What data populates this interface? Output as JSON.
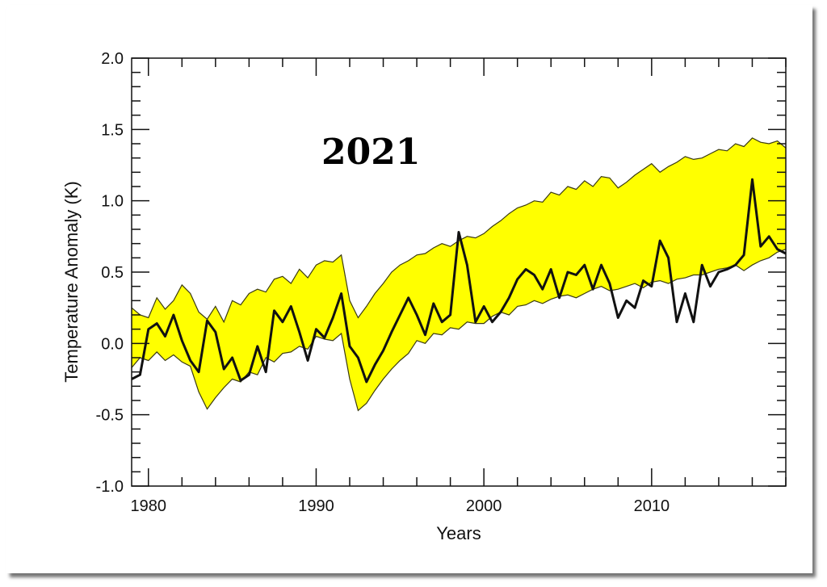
{
  "chart_data": {
    "type": "area",
    "title": "",
    "annotation": "2021",
    "xlabel": "Years",
    "ylabel": "Temperature Anomaly (K)",
    "xlim": [
      1979,
      2018
    ],
    "ylim": [
      -1.0,
      2.0
    ],
    "x_ticks": [
      1980,
      1990,
      2000,
      2010
    ],
    "y_ticks": [
      "-1.0",
      "-0.5",
      "0.0",
      "0.5",
      "1.0",
      "1.5",
      "2.0"
    ],
    "grid": false,
    "legend": "none",
    "colors": {
      "band_fill": "#ffff00",
      "band_edge": "#3a3a10",
      "observed_line": "#111111"
    },
    "series": [
      {
        "role": "band-upper",
        "x": [
          1979.0,
          1979.5,
          1980.0,
          1980.5,
          1981.0,
          1981.5,
          1982.0,
          1982.5,
          1983.0,
          1983.5,
          1984.0,
          1984.5,
          1985.0,
          1985.5,
          1986.0,
          1986.5,
          1987.0,
          1987.5,
          1988.0,
          1988.5,
          1989.0,
          1989.5,
          1990.0,
          1990.5,
          1991.0,
          1991.5,
          1992.0,
          1992.5,
          1993.0,
          1993.5,
          1994.0,
          1994.5,
          1995.0,
          1995.5,
          1996.0,
          1996.5,
          1997.0,
          1997.5,
          1998.0,
          1998.5,
          1999.0,
          1999.5,
          2000.0,
          2000.5,
          2001.0,
          2001.5,
          2002.0,
          2002.5,
          2003.0,
          2003.5,
          2004.0,
          2004.5,
          2005.0,
          2005.5,
          2006.0,
          2006.5,
          2007.0,
          2007.5,
          2008.0,
          2008.5,
          2009.0,
          2009.5,
          2010.0,
          2010.5,
          2011.0,
          2011.5,
          2012.0,
          2012.5,
          2013.0,
          2013.5,
          2014.0,
          2014.5,
          2015.0,
          2015.5,
          2016.0,
          2016.5,
          2017.0,
          2017.5,
          2018.0
        ],
        "values": [
          0.25,
          0.2,
          0.18,
          0.32,
          0.24,
          0.3,
          0.41,
          0.35,
          0.22,
          0.17,
          0.26,
          0.15,
          0.3,
          0.27,
          0.35,
          0.38,
          0.36,
          0.45,
          0.47,
          0.42,
          0.52,
          0.46,
          0.55,
          0.58,
          0.57,
          0.62,
          0.3,
          0.18,
          0.26,
          0.35,
          0.42,
          0.5,
          0.55,
          0.58,
          0.62,
          0.63,
          0.67,
          0.7,
          0.68,
          0.72,
          0.75,
          0.74,
          0.77,
          0.82,
          0.86,
          0.91,
          0.95,
          0.97,
          1.0,
          0.99,
          1.06,
          1.04,
          1.1,
          1.08,
          1.14,
          1.1,
          1.17,
          1.16,
          1.09,
          1.13,
          1.18,
          1.22,
          1.26,
          1.2,
          1.24,
          1.27,
          1.31,
          1.29,
          1.3,
          1.33,
          1.36,
          1.35,
          1.4,
          1.38,
          1.44,
          1.41,
          1.4,
          1.42,
          1.37
        ]
      },
      {
        "role": "band-lower",
        "x": [
          1979.0,
          1979.5,
          1980.0,
          1980.5,
          1981.0,
          1981.5,
          1982.0,
          1982.5,
          1983.0,
          1983.5,
          1984.0,
          1984.5,
          1985.0,
          1985.5,
          1986.0,
          1986.5,
          1987.0,
          1987.5,
          1988.0,
          1988.5,
          1989.0,
          1989.5,
          1990.0,
          1990.5,
          1991.0,
          1991.5,
          1992.0,
          1992.5,
          1993.0,
          1993.5,
          1994.0,
          1994.5,
          1995.0,
          1995.5,
          1996.0,
          1996.5,
          1997.0,
          1997.5,
          1998.0,
          1998.5,
          1999.0,
          1999.5,
          2000.0,
          2000.5,
          2001.0,
          2001.5,
          2002.0,
          2002.5,
          2003.0,
          2003.5,
          2004.0,
          2004.5,
          2005.0,
          2005.5,
          2006.0,
          2006.5,
          2007.0,
          2007.5,
          2008.0,
          2008.5,
          2009.0,
          2009.5,
          2010.0,
          2010.5,
          2011.0,
          2011.5,
          2012.0,
          2012.5,
          2013.0,
          2013.5,
          2014.0,
          2014.5,
          2015.0,
          2015.5,
          2016.0,
          2016.5,
          2017.0,
          2017.5,
          2018.0
        ],
        "values": [
          -0.17,
          -0.1,
          -0.12,
          -0.06,
          -0.12,
          -0.08,
          -0.13,
          -0.16,
          -0.34,
          -0.46,
          -0.38,
          -0.31,
          -0.25,
          -0.27,
          -0.2,
          -0.22,
          -0.1,
          -0.13,
          -0.07,
          -0.06,
          -0.02,
          -0.04,
          0.05,
          0.03,
          0.02,
          0.07,
          -0.25,
          -0.47,
          -0.42,
          -0.33,
          -0.25,
          -0.18,
          -0.12,
          -0.07,
          0.02,
          0.0,
          0.07,
          0.06,
          0.11,
          0.1,
          0.15,
          0.14,
          0.14,
          0.19,
          0.22,
          0.2,
          0.26,
          0.27,
          0.3,
          0.28,
          0.31,
          0.33,
          0.34,
          0.32,
          0.35,
          0.38,
          0.4,
          0.37,
          0.38,
          0.4,
          0.42,
          0.39,
          0.43,
          0.44,
          0.42,
          0.45,
          0.46,
          0.48,
          0.48,
          0.5,
          0.52,
          0.53,
          0.55,
          0.51,
          0.55,
          0.58,
          0.6,
          0.64,
          0.66
        ]
      },
      {
        "role": "observed-line",
        "x": [
          1979.0,
          1979.5,
          1980.0,
          1980.5,
          1981.0,
          1981.5,
          1982.0,
          1982.5,
          1983.0,
          1983.5,
          1984.0,
          1984.5,
          1985.0,
          1985.5,
          1986.0,
          1986.5,
          1987.0,
          1987.5,
          1988.0,
          1988.5,
          1989.0,
          1989.5,
          1990.0,
          1990.5,
          1991.0,
          1991.5,
          1992.0,
          1992.5,
          1993.0,
          1993.5,
          1994.0,
          1994.5,
          1995.0,
          1995.5,
          1996.0,
          1996.5,
          1997.0,
          1997.5,
          1998.0,
          1998.5,
          1999.0,
          1999.5,
          2000.0,
          2000.5,
          2001.0,
          2001.5,
          2002.0,
          2002.5,
          2003.0,
          2003.5,
          2004.0,
          2004.5,
          2005.0,
          2005.5,
          2006.0,
          2006.5,
          2007.0,
          2007.5,
          2008.0,
          2008.5,
          2009.0,
          2009.5,
          2010.0,
          2010.5,
          2011.0,
          2011.5,
          2012.0,
          2012.5,
          2013.0,
          2013.5,
          2014.0,
          2014.5,
          2015.0,
          2015.5,
          2016.0,
          2016.5,
          2017.0,
          2017.5,
          2018.0
        ],
        "values": [
          -0.25,
          -0.22,
          0.1,
          0.14,
          0.05,
          0.2,
          0.02,
          -0.12,
          -0.2,
          0.16,
          0.08,
          -0.18,
          -0.1,
          -0.26,
          -0.22,
          -0.02,
          -0.2,
          0.23,
          0.15,
          0.26,
          0.08,
          -0.12,
          0.1,
          0.04,
          0.18,
          0.35,
          -0.02,
          -0.1,
          -0.27,
          -0.15,
          -0.05,
          0.08,
          0.2,
          0.32,
          0.2,
          0.06,
          0.28,
          0.15,
          0.2,
          0.78,
          0.55,
          0.15,
          0.26,
          0.15,
          0.22,
          0.32,
          0.45,
          0.52,
          0.48,
          0.38,
          0.52,
          0.32,
          0.5,
          0.48,
          0.55,
          0.38,
          0.55,
          0.42,
          0.18,
          0.3,
          0.25,
          0.44,
          0.4,
          0.72,
          0.6,
          0.15,
          0.35,
          0.15,
          0.55,
          0.4,
          0.5,
          0.52,
          0.55,
          0.62,
          1.15,
          0.68,
          0.75,
          0.66,
          0.63
        ]
      }
    ]
  }
}
